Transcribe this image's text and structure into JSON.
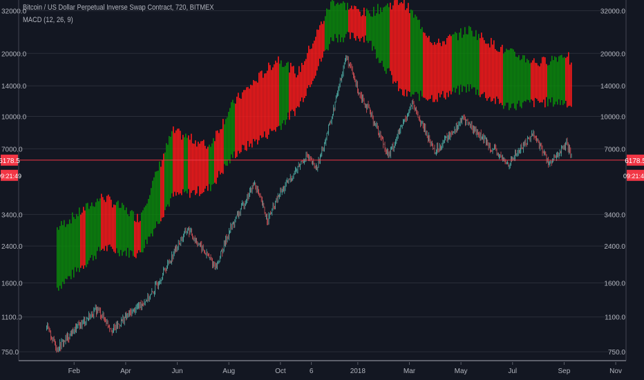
{
  "header": {
    "title": "Bitcoin / US Dollar Perpetual Inverse Swap Contract, 720, BITMEX",
    "indicator": "MACD (12, 26, 9)"
  },
  "price_tag": {
    "value": "6178.5",
    "countdown": "09:21:49",
    "color": "#f23645"
  },
  "colors": {
    "bg": "#131722",
    "grid": "#2a2e39",
    "up": "#0a8a0a",
    "down": "#ff1a1a",
    "line_up": "#53b9b0",
    "line_down": "#e0555a"
  },
  "chart_data": {
    "type": "bar",
    "title": "Bitcoin / US Dollar Perpetual Inverse Swap Contract, 720, BITMEX",
    "y_scale": "log",
    "ylim": [
      680,
      36000
    ],
    "y_ticks": [
      {
        "v": 32000,
        "label": "32000.0"
      },
      {
        "v": 20000,
        "label": "20000.0"
      },
      {
        "v": 14000,
        "label": "14000.0"
      },
      {
        "v": 10000,
        "label": "10000.0"
      },
      {
        "v": 7000,
        "label": "7000.0"
      },
      {
        "v": 3400,
        "label": "3400.0"
      },
      {
        "v": 2400,
        "label": "2400.0"
      },
      {
        "v": 1600,
        "label": "1600.0"
      },
      {
        "v": 1100,
        "label": "1100.0"
      },
      {
        "v": 750,
        "label": "750.0"
      }
    ],
    "x_unit": "months since 2017-01-01",
    "xlim": [
      -1.15,
      22.4
    ],
    "x_ticks": [
      {
        "m": 1,
        "label": "Feb"
      },
      {
        "m": 3,
        "label": "Apr"
      },
      {
        "m": 5,
        "label": "Jun"
      },
      {
        "m": 7,
        "label": "Aug"
      },
      {
        "m": 9,
        "label": "Oct"
      },
      {
        "m": 10.2,
        "label": "6"
      },
      {
        "m": 12,
        "label": "2018"
      },
      {
        "m": 14,
        "label": "Mar"
      },
      {
        "m": 16,
        "label": "May"
      },
      {
        "m": 18,
        "label": "Jul"
      },
      {
        "m": 20,
        "label": "Sep"
      },
      {
        "m": 22,
        "label": "Nov"
      }
    ],
    "price": [
      [
        -0.1,
        1000
      ],
      [
        0.35,
        780
      ],
      [
        1.0,
        950
      ],
      [
        1.9,
        1200
      ],
      [
        2.5,
        950
      ],
      [
        3.0,
        1100
      ],
      [
        4.0,
        1400
      ],
      [
        5.0,
        2400
      ],
      [
        5.4,
        2900
      ],
      [
        6.5,
        1900
      ],
      [
        7.0,
        2800
      ],
      [
        8.0,
        4800
      ],
      [
        8.5,
        3200
      ],
      [
        9.0,
        4300
      ],
      [
        10.0,
        6500
      ],
      [
        10.4,
        5600
      ],
      [
        11.0,
        10000
      ],
      [
        11.55,
        19500
      ],
      [
        12.0,
        13500
      ],
      [
        12.55,
        10000
      ],
      [
        13.2,
        6500
      ],
      [
        14.1,
        11500
      ],
      [
        15.0,
        6800
      ],
      [
        16.1,
        9800
      ],
      [
        17.0,
        7500
      ],
      [
        17.8,
        5900
      ],
      [
        18.8,
        8300
      ],
      [
        19.45,
        5900
      ],
      [
        20.1,
        7400
      ],
      [
        20.3,
        6178.5
      ]
    ],
    "band": [
      [
        0.27,
        1500,
        2900
      ],
      [
        2.1,
        2350,
        4150
      ],
      [
        3.5,
        2200,
        3250
      ],
      [
        4.8,
        4150,
        8500
      ],
      [
        6.2,
        4500,
        7200
      ],
      [
        7.2,
        6600,
        11800
      ],
      [
        8.9,
        8900,
        19000
      ],
      [
        9.65,
        11000,
        16000
      ],
      [
        11.0,
        24000,
        36000
      ],
      [
        12.3,
        24000,
        31000
      ],
      [
        13.7,
        12800,
        36000
      ],
      [
        15.0,
        12300,
        22000
      ],
      [
        16.3,
        13800,
        26000
      ],
      [
        17.7,
        11200,
        20500
      ],
      [
        19.0,
        11700,
        18000
      ],
      [
        20.1,
        11700,
        20000
      ],
      [
        20.3,
        11000,
        17000
      ]
    ],
    "band_colors": [
      [
        0.27,
        1.2,
        "up"
      ],
      [
        1.2,
        1.43,
        "down"
      ],
      [
        1.43,
        2.0,
        "up"
      ],
      [
        2.0,
        2.6,
        "down"
      ],
      [
        2.6,
        3.3,
        "up"
      ],
      [
        3.3,
        3.55,
        "down"
      ],
      [
        3.55,
        4.3,
        "up"
      ],
      [
        4.3,
        4.5,
        "down"
      ],
      [
        4.5,
        4.8,
        "up"
      ],
      [
        4.8,
        5.2,
        "down"
      ],
      [
        5.2,
        5.4,
        "up"
      ],
      [
        5.4,
        6.2,
        "down"
      ],
      [
        6.2,
        6.4,
        "up"
      ],
      [
        6.4,
        6.8,
        "down"
      ],
      [
        6.8,
        7.2,
        "up"
      ],
      [
        7.2,
        8.9,
        "down"
      ],
      [
        8.9,
        9.3,
        "up"
      ],
      [
        9.3,
        10.7,
        "down"
      ],
      [
        10.7,
        11.6,
        "up"
      ],
      [
        11.6,
        12.3,
        "down"
      ],
      [
        12.3,
        13.2,
        "up"
      ],
      [
        13.2,
        14.0,
        "down"
      ],
      [
        14.0,
        14.5,
        "up"
      ],
      [
        14.5,
        15.6,
        "down"
      ],
      [
        15.6,
        16.7,
        "up"
      ],
      [
        16.7,
        17.6,
        "down"
      ],
      [
        17.6,
        18.7,
        "up"
      ],
      [
        18.7,
        19.3,
        "down"
      ],
      [
        19.3,
        20.0,
        "up"
      ],
      [
        20.0,
        20.3,
        "down"
      ]
    ]
  }
}
